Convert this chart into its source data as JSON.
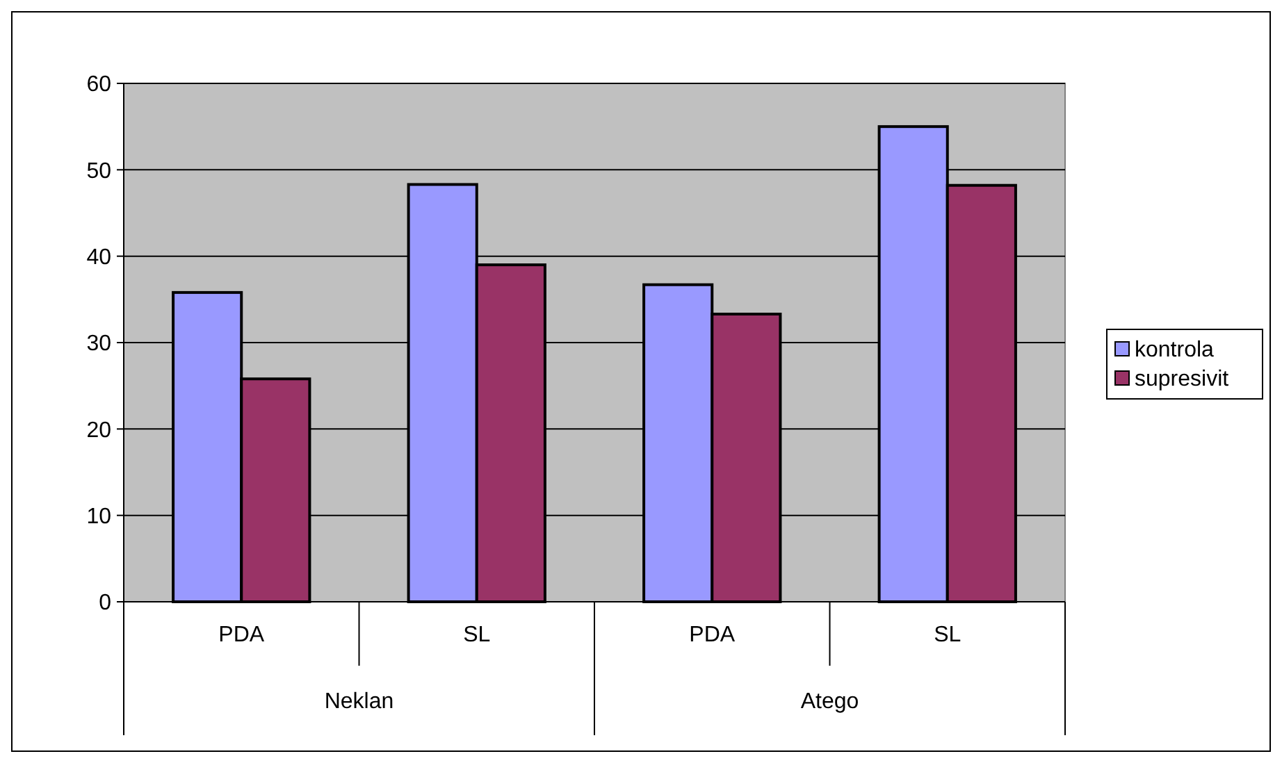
{
  "chart_data": {
    "type": "bar",
    "categories": [
      "PDA",
      "SL",
      "PDA",
      "SL"
    ],
    "annotations": [
      "Neklan",
      "Atego"
    ],
    "series": [
      {
        "name": "kontrola",
        "color": "#9999ff",
        "values": [
          35.8,
          48.3,
          36.7,
          55.0
        ]
      },
      {
        "name": "supresivit",
        "color": "#993366",
        "values": [
          25.8,
          39.0,
          33.3,
          48.2
        ]
      }
    ],
    "ylim": [
      0,
      60
    ],
    "yticks": [
      0,
      10,
      20,
      30,
      40,
      50,
      60
    ],
    "grid": "y",
    "legend": "right"
  }
}
